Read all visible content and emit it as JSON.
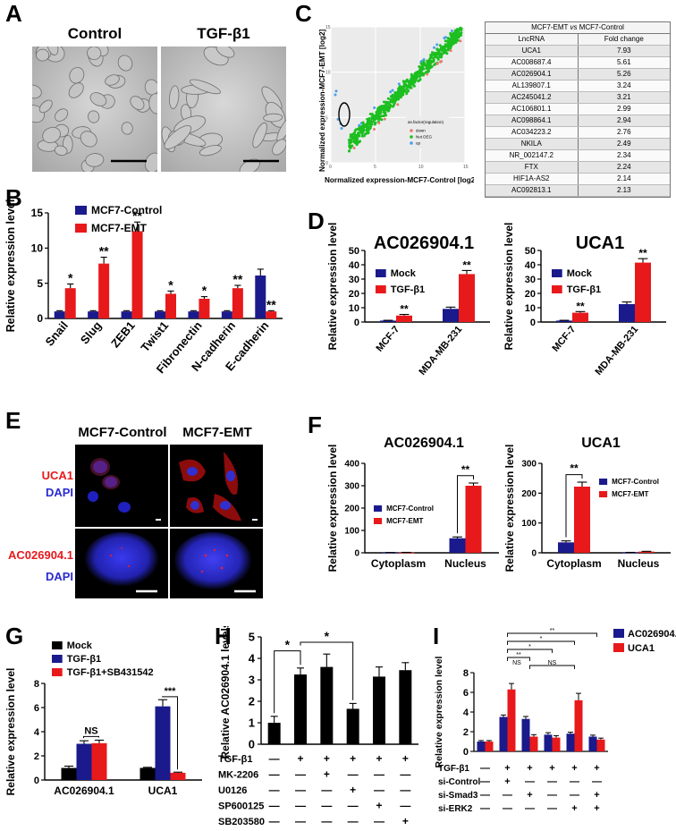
{
  "colors": {
    "navy": "#1a1a8c",
    "red": "#e8191b",
    "green": "#1cbf20",
    "blue": "#4aa0e8",
    "black": "#000000"
  },
  "panels": {
    "A": {
      "label": "A",
      "images": [
        {
          "title": "Control"
        },
        {
          "title": "TGF-β1"
        }
      ]
    },
    "C": {
      "label": "C",
      "scatter": {
        "ylabel": "Normalized expression-MCF7-EMT [log2]",
        "xlabel": "Normalized expression-MCF7-Control [log2]",
        "xticks": [
          "0",
          "5",
          "10",
          "15"
        ],
        "yticks": [
          "0",
          "5",
          "10",
          "15"
        ],
        "legend_title": "as.factor(regulation)",
        "legend": [
          "down",
          "Not DEG",
          "up"
        ]
      },
      "table": {
        "title_a": "MCF7-EMT ",
        "title_vs": "vs",
        "title_b": " MCF7-Control",
        "headers": [
          "LncRNA",
          "Fold change"
        ],
        "rows": [
          [
            "UCA1",
            "7.93"
          ],
          [
            "AC008687.4",
            "5.61"
          ],
          [
            "AC026904.1",
            "5.26"
          ],
          [
            "AL139807.1",
            "3.24"
          ],
          [
            "AC245041.2",
            "3.21"
          ],
          [
            "AC106801.1",
            "2.99"
          ],
          [
            "AC098864.1",
            "2.94"
          ],
          [
            "AC034223.2",
            "2.76"
          ],
          [
            "NKILA",
            "2.49"
          ],
          [
            "NR_002147.2",
            "2.34"
          ],
          [
            "FTX",
            "2.24"
          ],
          [
            "HIF1A-AS2",
            "2.14"
          ],
          [
            "AC092813.1",
            "2.13"
          ]
        ]
      }
    },
    "E": {
      "label": "E",
      "col_titles": [
        "MCF7-Control",
        "MCF7-EMT"
      ],
      "row1": [
        "UCA1",
        "DAPI"
      ],
      "row2": [
        "AC026904.1",
        "DAPI"
      ]
    }
  },
  "chart_data": [
    {
      "id": "B",
      "label": "B",
      "type": "bar",
      "ylabel": "Relative expression level",
      "ylim": [
        0,
        15
      ],
      "yticks": [
        0,
        5,
        10,
        15
      ],
      "categories": [
        "Snail",
        "Slug",
        "ZEB1",
        "Twist1",
        "Fibronectin",
        "N-cadherin",
        "E-cadherin"
      ],
      "series": [
        {
          "name": "MCF7-Control",
          "color": "#1a1a8c",
          "values": [
            1,
            1,
            1,
            1,
            1,
            1,
            6.1
          ],
          "errors": [
            0.1,
            0.1,
            0.1,
            0.1,
            0.1,
            0.1,
            0.9
          ]
        },
        {
          "name": "MCF7-EMT",
          "color": "#e8191b",
          "values": [
            4.3,
            7.8,
            12.4,
            3.5,
            2.8,
            4.3,
            1.0
          ],
          "errors": [
            0.6,
            0.9,
            1.3,
            0.4,
            0.3,
            0.4,
            0.1
          ]
        }
      ],
      "annotations": [
        "*",
        "**",
        "**",
        "*",
        "*",
        "**",
        "**"
      ]
    },
    {
      "id": "D1",
      "label": "D",
      "type": "bar",
      "title": "AC026904.1",
      "ylabel": "Relative expression level",
      "ylim": [
        0,
        50
      ],
      "yticks": [
        0,
        10,
        20,
        30,
        40,
        50
      ],
      "categories": [
        "MCF-7",
        "MDA-MB-231"
      ],
      "series": [
        {
          "name": "Mock",
          "color": "#1a1a8c",
          "values": [
            1,
            9.2
          ],
          "errors": [
            0.2,
            1.2
          ]
        },
        {
          "name": "TGF-β1",
          "color": "#e8191b",
          "values": [
            4.5,
            33.5
          ],
          "errors": [
            0.8,
            2.5
          ]
        }
      ],
      "annotations": [
        "**",
        "**"
      ]
    },
    {
      "id": "D2",
      "type": "bar",
      "title": "UCA1",
      "ylabel": "Relative expression level",
      "ylim": [
        0,
        50
      ],
      "yticks": [
        0,
        10,
        20,
        30,
        40,
        50
      ],
      "categories": [
        "MCF-7",
        "MDA-MB-231"
      ],
      "series": [
        {
          "name": "Mock",
          "color": "#1a1a8c",
          "values": [
            1,
            12.5
          ],
          "errors": [
            0.2,
            1.5
          ]
        },
        {
          "name": "TGF-β1",
          "color": "#e8191b",
          "values": [
            6.5,
            41.5
          ],
          "errors": [
            0.8,
            2.8
          ]
        }
      ],
      "annotations": [
        "**",
        "**"
      ]
    },
    {
      "id": "F1",
      "label": "F",
      "type": "bar",
      "title": "AC026904.1",
      "ylabel": "Relative expression level",
      "ylim": [
        0,
        400
      ],
      "yticks": [
        0,
        100,
        200,
        300,
        400
      ],
      "categories": [
        "Cytoplasm",
        "Nucleus"
      ],
      "series": [
        {
          "name": "MCF7-Control",
          "color": "#1a1a8c",
          "values": [
            1,
            65
          ],
          "errors": [
            0.5,
            6
          ]
        },
        {
          "name": "MCF7-EMT",
          "color": "#e8191b",
          "values": [
            1.5,
            300
          ],
          "errors": [
            0.5,
            12
          ]
        }
      ],
      "sig": "**"
    },
    {
      "id": "F2",
      "type": "bar",
      "title": "UCA1",
      "ylabel": "Relative expression level",
      "ylim": [
        0,
        300
      ],
      "yticks": [
        0,
        100,
        200,
        300
      ],
      "categories": [
        "Cytoplasm",
        "Nucleus"
      ],
      "series": [
        {
          "name": "MCF7-Control",
          "color": "#1a1a8c",
          "values": [
            35,
            1
          ],
          "errors": [
            5,
            0.5
          ]
        },
        {
          "name": "MCF7-EMT",
          "color": "#e8191b",
          "values": [
            222,
            4
          ],
          "errors": [
            15,
            1
          ]
        }
      ],
      "sig": "**"
    },
    {
      "id": "G",
      "label": "G",
      "type": "bar",
      "ylabel": "Relative expression level",
      "ylim": [
        0,
        8
      ],
      "yticks": [
        0,
        2,
        4,
        6,
        8
      ],
      "categories": [
        "AC026904.1",
        "UCA1"
      ],
      "series": [
        {
          "name": "Mock",
          "color": "#000000",
          "values": [
            1,
            1
          ],
          "errors": [
            0.15,
            0.05
          ]
        },
        {
          "name": "TGF-β1",
          "color": "#1a1a8c",
          "values": [
            3.0,
            6.1
          ],
          "errors": [
            0.25,
            0.55
          ]
        },
        {
          "name": "TGF-β1+SB431542",
          "color": "#e8191b",
          "values": [
            3.05,
            0.6
          ],
          "errors": [
            0.25,
            0.05
          ]
        }
      ],
      "sig": [
        "NS",
        "***"
      ]
    },
    {
      "id": "H",
      "label": "H",
      "type": "bar",
      "ylabel": "Relative AC026904.1 levels",
      "ylim": [
        0,
        5
      ],
      "yticks": [
        0,
        1,
        2,
        3,
        4,
        5
      ],
      "values": [
        1.0,
        3.25,
        3.6,
        1.65,
        3.15,
        3.45
      ],
      "errors": [
        0.3,
        0.3,
        0.6,
        0.25,
        0.45,
        0.35
      ],
      "sig": [
        "*",
        "*"
      ],
      "treatments": [
        {
          "name": "TGF-β1",
          "marks": [
            "—",
            "+",
            "+",
            "+",
            "+",
            "+"
          ]
        },
        {
          "name": "MK-2206",
          "marks": [
            "—",
            "—",
            "+",
            "—",
            "—",
            "—"
          ]
        },
        {
          "name": "U0126",
          "marks": [
            "—",
            "—",
            "—",
            "+",
            "—",
            "—"
          ]
        },
        {
          "name": "SP600125",
          "marks": [
            "—",
            "—",
            "—",
            "—",
            "+",
            "—"
          ]
        },
        {
          "name": "SB203580",
          "marks": [
            "—",
            "—",
            "—",
            "—",
            "—",
            "+"
          ]
        }
      ]
    },
    {
      "id": "I",
      "label": "I",
      "type": "bar",
      "ylabel": "Relative expression level",
      "ylim": [
        0,
        8
      ],
      "yticks": [
        0,
        2,
        4,
        6,
        8
      ],
      "series": [
        {
          "name": "AC026904.1",
          "color": "#1a1a8c",
          "values": [
            1.0,
            3.5,
            3.3,
            1.7,
            1.8,
            1.5
          ],
          "errors": [
            0.1,
            0.2,
            0.25,
            0.2,
            0.15,
            0.15
          ]
        },
        {
          "name": "UCA1",
          "color": "#e8191b",
          "values": [
            1.0,
            6.3,
            1.5,
            1.4,
            5.2,
            1.2
          ],
          "errors": [
            0.1,
            0.6,
            0.2,
            0.2,
            0.7,
            0.15
          ]
        }
      ],
      "sig": [
        "**",
        "*",
        "*",
        "**",
        "NS",
        "NS"
      ],
      "treatments": [
        {
          "name": "TGF-β1",
          "marks": [
            "—",
            "+",
            "+",
            "+",
            "+",
            "+"
          ]
        },
        {
          "name": "si-Control",
          "marks": [
            "—",
            "+",
            "—",
            "—",
            "—",
            "—"
          ]
        },
        {
          "name": "si-Smad3",
          "marks": [
            "—",
            "—",
            "+",
            "—",
            "—",
            "+"
          ]
        },
        {
          "name": "si-ERK2",
          "marks": [
            "—",
            "—",
            "—",
            "—",
            "+",
            "+"
          ]
        }
      ]
    }
  ]
}
